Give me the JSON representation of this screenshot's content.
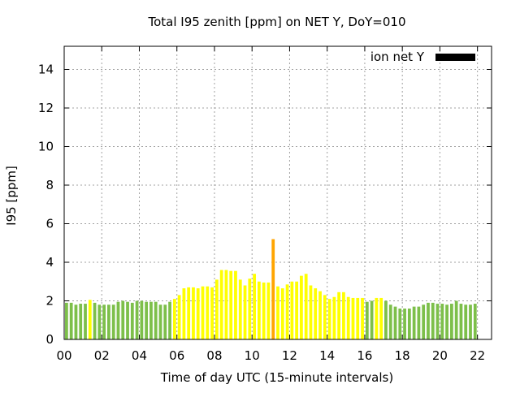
{
  "chart_data": {
    "type": "bar",
    "title": "Total I95 zenith [ppm] on NET Y, DoY=010",
    "xlabel": "Time of day UTC (15-minute intervals)",
    "ylabel": "I95 [ppm]",
    "ylim": [
      0,
      15.2
    ],
    "xlim": [
      0,
      22.75
    ],
    "grid": true,
    "legend_position": "top-right",
    "legend": [
      {
        "label": "ion net Y",
        "color": "#000000"
      }
    ],
    "x_tick_labels": [
      "00",
      "02",
      "04",
      "06",
      "08",
      "10",
      "12",
      "14",
      "16",
      "18",
      "20",
      "22"
    ],
    "x_tick_values": [
      0,
      2,
      4,
      6,
      8,
      10,
      12,
      14,
      16,
      18,
      20,
      22
    ],
    "y_tick_values": [
      0,
      2,
      4,
      6,
      8,
      10,
      12,
      14
    ],
    "y_tick_labels": [
      "0",
      "2",
      "4",
      "6",
      "8",
      "10",
      "12",
      "14"
    ],
    "colors": {
      "green": "#7dbf4a",
      "yellow": "#ffff00",
      "orange": "#ffa500"
    },
    "bar_interval_hours": 0.25,
    "values": [
      1.9,
      1.9,
      1.8,
      1.85,
      1.85,
      2.05,
      1.9,
      1.8,
      1.8,
      1.8,
      1.8,
      1.95,
      2.0,
      1.95,
      1.9,
      2.0,
      2.0,
      1.95,
      1.95,
      1.95,
      1.8,
      1.8,
      1.95,
      2.1,
      2.3,
      2.65,
      2.7,
      2.7,
      2.65,
      2.75,
      2.75,
      2.7,
      3.1,
      3.6,
      3.6,
      3.55,
      3.55,
      3.1,
      2.8,
      3.15,
      3.4,
      3.0,
      2.95,
      2.95,
      5.2,
      2.75,
      2.65,
      2.85,
      3.0,
      3.0,
      3.3,
      3.4,
      2.8,
      2.65,
      2.5,
      2.3,
      2.1,
      2.2,
      2.45,
      2.45,
      2.2,
      2.15,
      2.15,
      2.15,
      1.95,
      2.0,
      2.15,
      2.15,
      2.0,
      1.8,
      1.7,
      1.6,
      1.6,
      1.6,
      1.7,
      1.7,
      1.8,
      1.9,
      1.9,
      1.85,
      1.85,
      1.8,
      1.85,
      2.0,
      1.85,
      1.8,
      1.8,
      1.85
    ],
    "bar_colors": [
      "green",
      "green",
      "green",
      "green",
      "green",
      "yellow",
      "green",
      "green",
      "green",
      "green",
      "green",
      "green",
      "green",
      "green",
      "green",
      "green",
      "green",
      "green",
      "green",
      "green",
      "green",
      "green",
      "green",
      "yellow",
      "yellow",
      "yellow",
      "yellow",
      "yellow",
      "yellow",
      "yellow",
      "yellow",
      "yellow",
      "yellow",
      "yellow",
      "yellow",
      "yellow",
      "yellow",
      "yellow",
      "yellow",
      "yellow",
      "yellow",
      "yellow",
      "yellow",
      "yellow",
      "orange",
      "yellow",
      "yellow",
      "yellow",
      "yellow",
      "yellow",
      "yellow",
      "yellow",
      "yellow",
      "yellow",
      "yellow",
      "yellow",
      "yellow",
      "yellow",
      "yellow",
      "yellow",
      "yellow",
      "yellow",
      "yellow",
      "yellow",
      "green",
      "green",
      "yellow",
      "yellow",
      "green",
      "green",
      "green",
      "green",
      "green",
      "green",
      "green",
      "green",
      "green",
      "green",
      "green",
      "green",
      "green",
      "green",
      "green",
      "green",
      "green",
      "green",
      "green",
      "green"
    ]
  }
}
